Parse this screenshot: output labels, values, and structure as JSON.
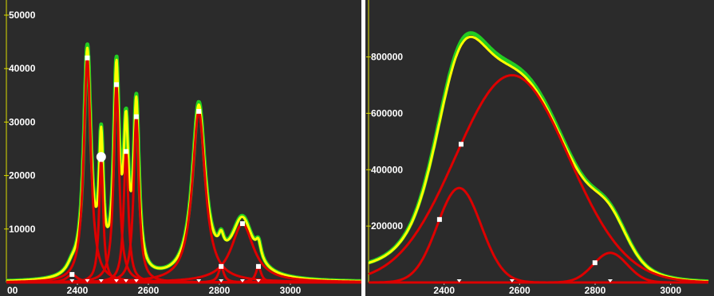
{
  "chart_data": [
    {
      "type": "line",
      "xlim": [
        2200,
        3200
      ],
      "ylim": [
        0,
        50000
      ],
      "x_ticks": [
        2400,
        2600,
        2800,
        3000
      ],
      "x_tick_labels": [
        "2400",
        "2600",
        "2800",
        "3000"
      ],
      "y_ticks": [
        10000,
        20000,
        30000,
        40000,
        50000
      ],
      "y_tick_labels": [
        "10000",
        "20000",
        "30000",
        "40000",
        "50000"
      ],
      "clipped_x_tick_label": {
        "x": 2200,
        "label": "00"
      },
      "grid": false,
      "colors": {
        "envelope": "#ffff00",
        "measured": "#22cc22",
        "components": "#dd0000",
        "markers": "#ffffff",
        "axis": "#dddd00"
      },
      "peaks": [
        {
          "x0": 2385,
          "amp": 1500,
          "w": 18
        },
        {
          "x0": 2428,
          "amp": 42000,
          "w": 12
        },
        {
          "x0": 2467,
          "amp": 23000,
          "w": 7
        },
        {
          "x0": 2510,
          "amp": 37000,
          "w": 9
        },
        {
          "x0": 2537,
          "amp": 24500,
          "w": 8
        },
        {
          "x0": 2566,
          "amp": 31000,
          "w": 9
        },
        {
          "x0": 2742,
          "amp": 32000,
          "w": 22
        },
        {
          "x0": 2805,
          "amp": 3000,
          "w": 9
        },
        {
          "x0": 2865,
          "amp": 11000,
          "w": 38
        },
        {
          "x0": 2910,
          "amp": 3000,
          "w": 9
        }
      ],
      "highlight_marker": {
        "x": 2467,
        "y": 23500
      }
    },
    {
      "type": "line",
      "xlim": [
        2200,
        3100
      ],
      "ylim": [
        0,
        920000
      ],
      "x_ticks": [
        2400,
        2600,
        2800,
        3000
      ],
      "x_tick_labels": [
        "2400",
        "2600",
        "2800",
        "3000"
      ],
      "y_ticks": [
        200000,
        400000,
        600000,
        800000
      ],
      "y_tick_labels": [
        "200000",
        "400000",
        "600000",
        "800000"
      ],
      "grid": false,
      "colors": {
        "envelope": "#ffff00",
        "measured": "#22cc22",
        "components": "#dd0000",
        "markers": "#ffffff",
        "axis": "#dddd00"
      },
      "peaks": [
        {
          "x0": 2440,
          "amp": 335000,
          "w": 58
        },
        {
          "x0": 2580,
          "amp": 735000,
          "w": 150
        },
        {
          "x0": 2840,
          "amp": 105000,
          "w": 45
        }
      ],
      "envelope_peak_x": 2490
    }
  ]
}
